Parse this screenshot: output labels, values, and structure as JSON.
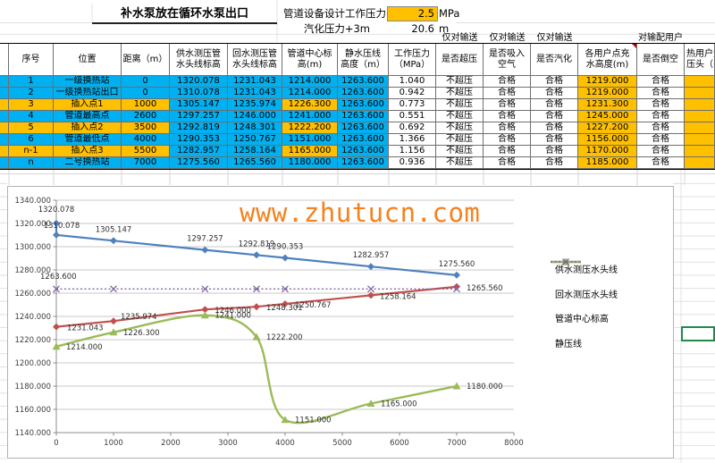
{
  "header": {
    "title": "补水泵放在循环水泵出口",
    "design_pressure_label": "管道设备设计工作压力",
    "design_pressure_value": "2.5",
    "design_pressure_unit": "MPa",
    "vapor_label": "汽化压力+3m",
    "vapor_value": "20.6",
    "vapor_unit": "m",
    "scope_notes": [
      "仅对输送",
      "仅对输送",
      "仅对输送",
      "对输配用户"
    ]
  },
  "table": {
    "columns": [
      "序号",
      "位置",
      "距离（m）",
      "供水测压管\n水头线标高",
      "回水测压管\n水头线标高",
      "管道中心标\n高(m)",
      "静水压线\n高度（m）",
      "工作压力\n（MPa）",
      "是否超压",
      "是否吸入\n空气",
      "是否汽化",
      "各用户点充\n水高度(m)",
      "是否倒空",
      "热用户资用\n压头（m）"
    ],
    "rows": [
      {
        "seq": "1",
        "pos": "一级换热站",
        "dist": "0",
        "supply": "1320.078",
        "ret": "1231.043",
        "center": "1214.000",
        "stat": "1263.600",
        "press": "1.040",
        "over": "不超压",
        "intake": "合格",
        "vapor": "合格",
        "fill": "1219.000",
        "empty": "合格",
        "heat": "",
        "highlight": false
      },
      {
        "seq": "2",
        "pos": "一级换热站出口",
        "dist": "0",
        "supply": "1310.078",
        "ret": "1231.043",
        "center": "1214.000",
        "stat": "1263.600",
        "press": "0.942",
        "over": "不超压",
        "intake": "合格",
        "vapor": "合格",
        "fill": "1219.000",
        "empty": "合格",
        "heat": "",
        "highlight": false
      },
      {
        "seq": "3",
        "pos": "插入点1",
        "dist": "1000",
        "supply": "1305.147",
        "ret": "1235.974",
        "center": "1226.300",
        "stat": "1263.600",
        "press": "0.773",
        "over": "不超压",
        "intake": "合格",
        "vapor": "合格",
        "fill": "1231.300",
        "empty": "合格",
        "heat": "",
        "highlight": true
      },
      {
        "seq": "4",
        "pos": "管道最高点",
        "dist": "2600",
        "supply": "1297.257",
        "ret": "1246.000",
        "center": "1241.000",
        "stat": "1263.600",
        "press": "0.551",
        "over": "不超压",
        "intake": "合格",
        "vapor": "合格",
        "fill": "1245.000",
        "empty": "合格",
        "heat": "",
        "highlight": false
      },
      {
        "seq": "5",
        "pos": "插入点2",
        "dist": "3500",
        "supply": "1292.819",
        "ret": "1248.301",
        "center": "1222.200",
        "stat": "1263.600",
        "press": "0.692",
        "over": "不超压",
        "intake": "合格",
        "vapor": "合格",
        "fill": "1227.200",
        "empty": "合格",
        "heat": "",
        "highlight": true
      },
      {
        "seq": "6",
        "pos": "管道最低点",
        "dist": "4000",
        "supply": "1290.353",
        "ret": "1250.767",
        "center": "1151.000",
        "stat": "1263.600",
        "press": "1.366",
        "over": "不超压",
        "intake": "合格",
        "vapor": "合格",
        "fill": "1156.000",
        "empty": "合格",
        "heat": "",
        "highlight": false
      },
      {
        "seq": "n-1",
        "pos": "插入点3",
        "dist": "5500",
        "supply": "1282.957",
        "ret": "1258.164",
        "center": "1165.000",
        "stat": "1263.600",
        "press": "1.156",
        "over": "不超压",
        "intake": "合格",
        "vapor": "合格",
        "fill": "1170.000",
        "empty": "合格",
        "heat": "",
        "highlight": true
      },
      {
        "seq": "n",
        "pos": "二号换热站",
        "dist": "7000",
        "supply": "1275.560",
        "ret": "1265.560",
        "center": "1180.000",
        "stat": "1263.600",
        "press": "0.936",
        "over": "不超压",
        "intake": "合格",
        "vapor": "合格",
        "fill": "1185.000",
        "empty": "合格",
        "heat": "",
        "highlight": false
      }
    ]
  },
  "watermark": "www.zhutucn.com",
  "colors": {
    "row_cyan": "#00B0F0",
    "row_orange": "#FFC000",
    "supply_line": "#4F81BD",
    "return_line": "#C0504D",
    "center_line": "#9BBB59",
    "static_line": "#8064A2",
    "watermark": "#F58220",
    "selection_green": "#1E8A4C"
  },
  "chart_data": {
    "type": "line",
    "x": [
      0,
      0,
      1000,
      2600,
      3500,
      4000,
      5500,
      7000
    ],
    "series": [
      {
        "name": "供水测压水头线",
        "color": "#4F81BD",
        "marker": "diamond",
        "values": [
          1320.078,
          1310.078,
          1305.147,
          1297.257,
          1292.819,
          1290.353,
          1282.957,
          1275.56
        ]
      },
      {
        "name": "回水测压水头线",
        "color": "#C0504D",
        "marker": "diamond",
        "values": [
          1231.043,
          1231.043,
          1235.974,
          1246.0,
          1248.301,
          1250.767,
          1258.164,
          1265.56
        ]
      },
      {
        "name": "管道中心标高",
        "color": "#9BBB59",
        "marker": "triangle",
        "smooth": true,
        "values": [
          1214.0,
          1214.0,
          1226.3,
          1241.0,
          1222.2,
          1151.0,
          1165.0,
          1180.0
        ]
      },
      {
        "name": "静压线",
        "color": "#8064A2",
        "marker": "x",
        "dashed": true,
        "values": [
          1263.6,
          1263.6,
          1263.6,
          1263.6,
          1263.6,
          1263.6,
          1263.6,
          1263.6
        ]
      }
    ],
    "xlim": [
      0,
      8000
    ],
    "ylim": [
      1140,
      1340
    ],
    "xtick": 1000,
    "ytick": 20,
    "xlabel": "",
    "ylabel": "",
    "title": "",
    "grid": "horizontal",
    "legend_position": "right",
    "x_tick_labels": [
      "0",
      "1000",
      "2000",
      "3000",
      "4000",
      "5000",
      "6000",
      "7000",
      "8000"
    ],
    "y_tick_labels": [
      "1140.000",
      "1160.000",
      "1180.000",
      "1200.000",
      "1220.000",
      "1240.000",
      "1260.000",
      "1280.000",
      "1300.000",
      "1320.000",
      "1340.000"
    ]
  }
}
